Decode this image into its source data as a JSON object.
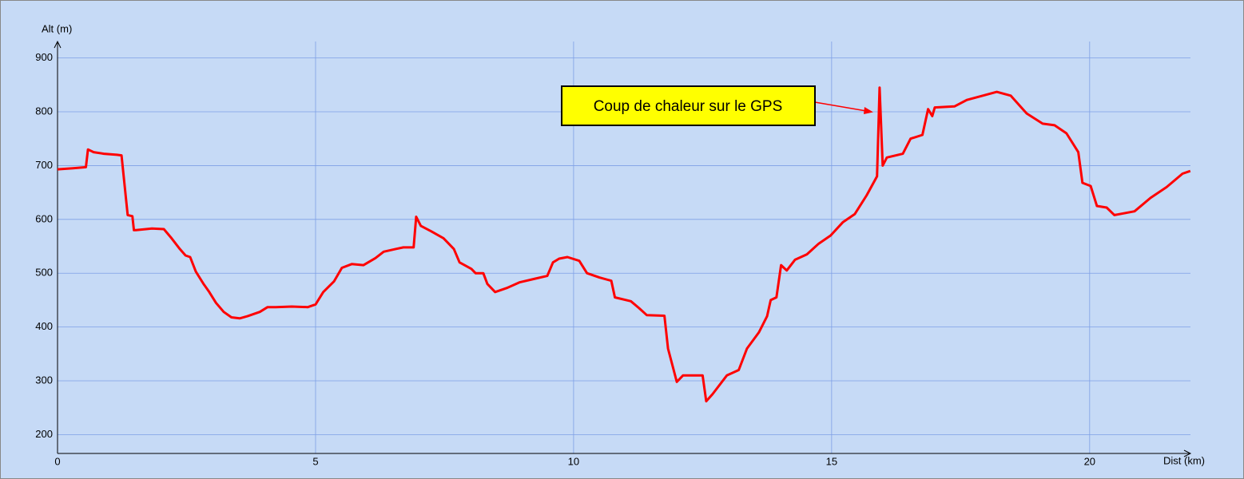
{
  "chart_data": {
    "type": "line",
    "x_label": "Dist (km)",
    "y_label": "Alt (m)",
    "annotation": "Coup de chaleur sur le GPS",
    "color": "#ff0000",
    "grid": true,
    "xlim": [
      0,
      22
    ],
    "ylim": [
      165,
      918
    ],
    "xticks": [
      0,
      5,
      10,
      15,
      20
    ],
    "yticks": [
      200,
      300,
      400,
      500,
      600,
      700,
      800,
      900
    ],
    "x": [
      0,
      0.3,
      0.55,
      0.59,
      0.7,
      0.9,
      1.15,
      1.24,
      1.36,
      1.45,
      1.48,
      1.52,
      1.83,
      2.06,
      2.21,
      2.37,
      2.48,
      2.57,
      2.68,
      2.83,
      2.94,
      3.07,
      3.22,
      3.37,
      3.53,
      3.68,
      3.92,
      4.07,
      4.23,
      4.54,
      4.85,
      5.0,
      5.15,
      5.36,
      5.51,
      5.7,
      5.93,
      6.16,
      6.32,
      6.55,
      6.7,
      6.9,
      6.95,
      7.04,
      7.24,
      7.48,
      7.68,
      7.79,
      8.02,
      8.1,
      8.25,
      8.33,
      8.48,
      8.72,
      8.95,
      9.26,
      9.49,
      9.6,
      9.72,
      9.88,
      10.11,
      10.26,
      10.5,
      10.73,
      10.8,
      11.11,
      11.27,
      11.42,
      11.76,
      11.83,
      12.0,
      12.12,
      12.5,
      12.57,
      12.69,
      12.97,
      13.2,
      13.36,
      13.59,
      13.75,
      13.82,
      13.93,
      14.02,
      14.13,
      14.29,
      14.52,
      14.75,
      14.98,
      15.22,
      15.45,
      15.68,
      15.88,
      15.93,
      15.99,
      16.07,
      16.38,
      16.53,
      16.76,
      16.87,
      16.95,
      17.0,
      17.38,
      17.62,
      17.93,
      18.2,
      18.47,
      18.78,
      19.09,
      19.32,
      19.55,
      19.78,
      19.86,
      20.02,
      20.14,
      20.33,
      20.48,
      20.87,
      21.18,
      21.49,
      21.8,
      21.95
    ],
    "values": [
      693,
      695,
      697,
      730,
      725,
      722,
      720,
      719,
      608,
      606,
      580,
      580,
      583,
      582,
      565,
      545,
      533,
      530,
      503,
      480,
      465,
      445,
      428,
      418,
      416,
      420,
      428,
      437,
      437,
      438,
      437,
      442,
      465,
      485,
      510,
      517,
      515,
      528,
      540,
      545,
      548,
      548,
      605,
      588,
      578,
      565,
      545,
      520,
      508,
      500,
      500,
      480,
      465,
      473,
      483,
      490,
      495,
      520,
      527,
      530,
      523,
      500,
      492,
      486,
      455,
      448,
      435,
      422,
      421,
      360,
      298,
      310,
      310,
      262,
      275,
      310,
      320,
      360,
      390,
      420,
      450,
      455,
      515,
      505,
      525,
      535,
      555,
      570,
      595,
      610,
      645,
      680,
      845,
      700,
      715,
      722,
      750,
      757,
      805,
      792,
      808,
      810,
      822,
      830,
      837,
      830,
      797,
      778,
      775,
      760,
      725,
      668,
      662,
      625,
      622,
      608,
      615,
      640,
      660,
      685,
      690
    ]
  }
}
